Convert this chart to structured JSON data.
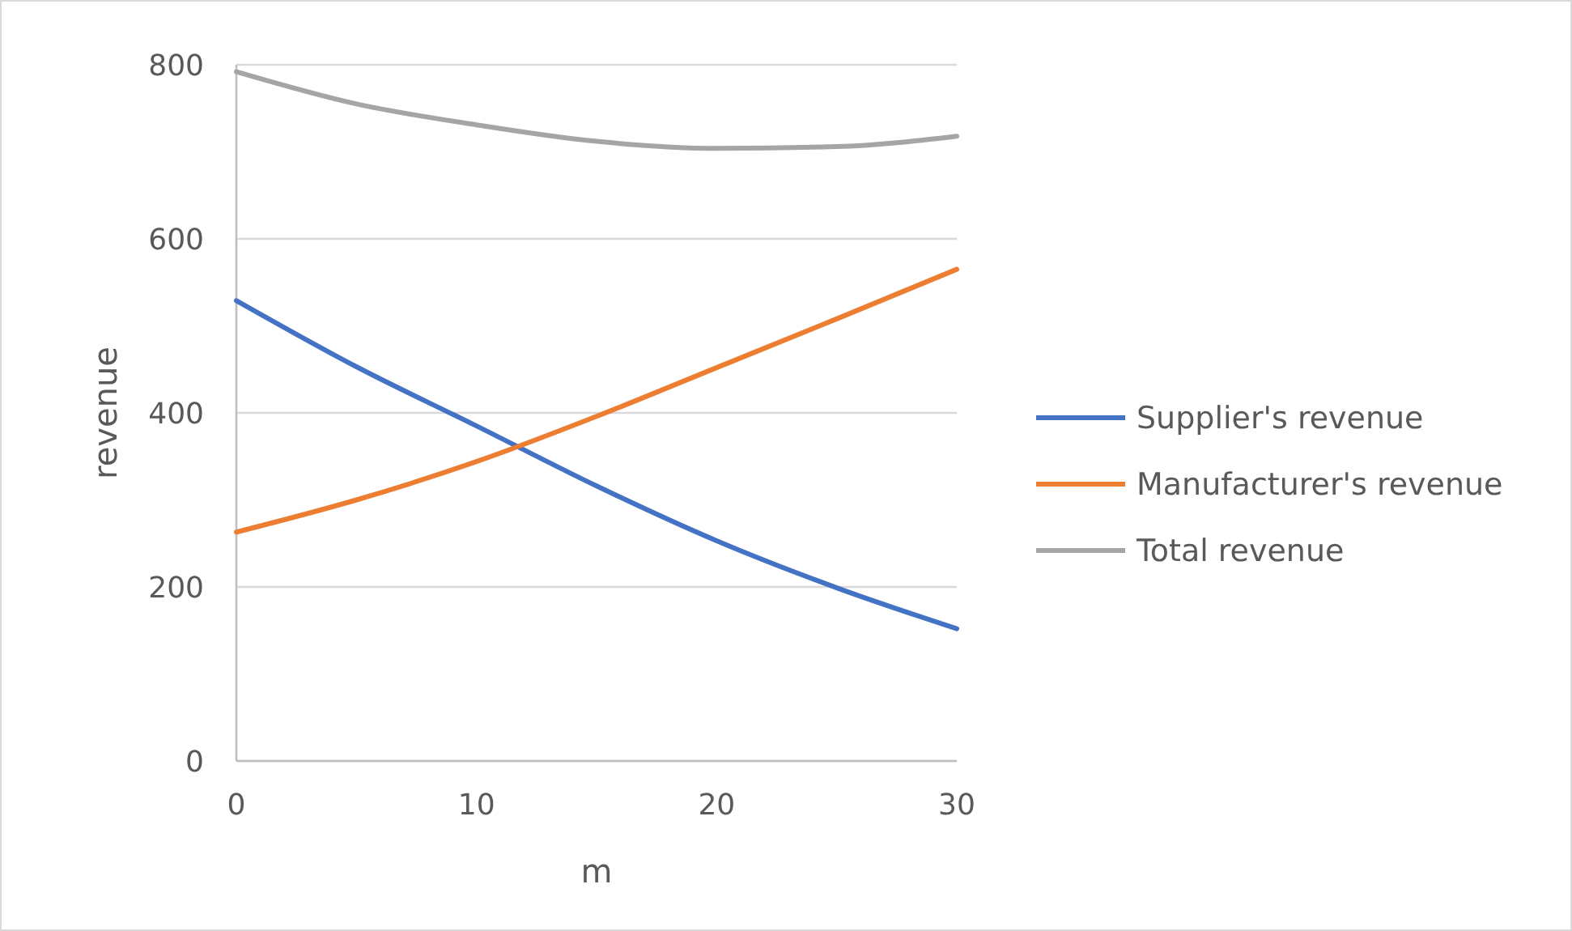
{
  "chart_data": {
    "type": "line",
    "xlabel": "m",
    "ylabel": "revenue",
    "x": [
      0,
      5,
      10,
      15,
      20,
      25,
      30
    ],
    "series": [
      {
        "name": "Supplier's revenue",
        "color": "#4472c4",
        "values": [
          529,
          453,
          385,
          316,
          253,
          199,
          152
        ]
      },
      {
        "name": "Manufacturer's revenue",
        "color": "#ed7d31",
        "values": [
          263,
          300,
          344,
          396,
          452,
          508,
          565
        ]
      },
      {
        "name": "Total revenue",
        "color": "#a5a5a5",
        "values": [
          792,
          755,
          731,
          712,
          704,
          706,
          718
        ]
      }
    ],
    "xlim": [
      0,
      30
    ],
    "xticks": [
      0,
      10,
      20,
      30
    ],
    "ylim": [
      0,
      800
    ],
    "yticks": [
      0,
      200,
      400,
      600,
      800
    ],
    "grid": "y",
    "legend": "right",
    "marker": "none",
    "line_style": "solid"
  }
}
